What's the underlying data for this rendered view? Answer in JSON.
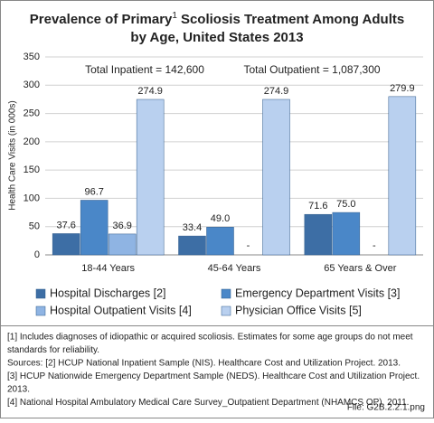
{
  "chart_data": {
    "type": "bar",
    "title": [
      "Prevalence of Primary",
      "1",
      "Scoliosis Treatment Among Adults",
      "by Age, United States 2013"
    ],
    "ylabel": "Health Care Visits (in 000s)",
    "annotations": [
      "Total Inpatient = 142,600",
      "Total Outpatient = 1,087,300"
    ],
    "categories": [
      "18-44 Years",
      "45-64 Years",
      "65 Years & Over"
    ],
    "series": [
      {
        "name": "Hospital Discharges [2]",
        "color": "#3d6ea5",
        "values": [
          37.6,
          33.4,
          71.6
        ],
        "value_labels": [
          "37.6",
          "33.4",
          "71.6"
        ]
      },
      {
        "name": "Emergency Department Visits [3]",
        "color": "#4a87c8",
        "values": [
          96.7,
          49.0,
          75.0
        ],
        "value_labels": [
          "96.7",
          "49.0",
          "75.0"
        ]
      },
      {
        "name": "Hospital Outpatient Visits [4]",
        "color": "#8fb4e3",
        "values": [
          36.9,
          null,
          null
        ],
        "value_labels": [
          "36.9",
          "-",
          "-"
        ]
      },
      {
        "name": "Physician Office Visits [5]",
        "color": "#b9d0ef",
        "values": [
          274.9,
          274.9,
          279.9
        ],
        "value_labels": [
          "274.9",
          "274.9",
          "279.9"
        ]
      }
    ],
    "ylim": [
      0,
      350
    ],
    "yticks": [
      0,
      50,
      100,
      150,
      200,
      250,
      300,
      350
    ],
    "grid": true,
    "footnotes": [
      "[1] Includes diagnoses of idiopathic or acquired scoliosis. Estimates for some age groups do not meet",
      "standards for reliability.",
      "Sources: [2] HCUP National Inpatient Sample (NIS). Healthcare Cost and Utilization Project. 2013.",
      "[3] HCUP Nationwide Emergency Department Sample (NEDS). Healthcare Cost and Utilization Project.",
      "2013.",
      "[4] National Hospital Ambulatory Medical Care Survey_Outpatient Department (NHAMCS  OP). 2011."
    ],
    "file": "File: G2B.2.2.1.png"
  }
}
